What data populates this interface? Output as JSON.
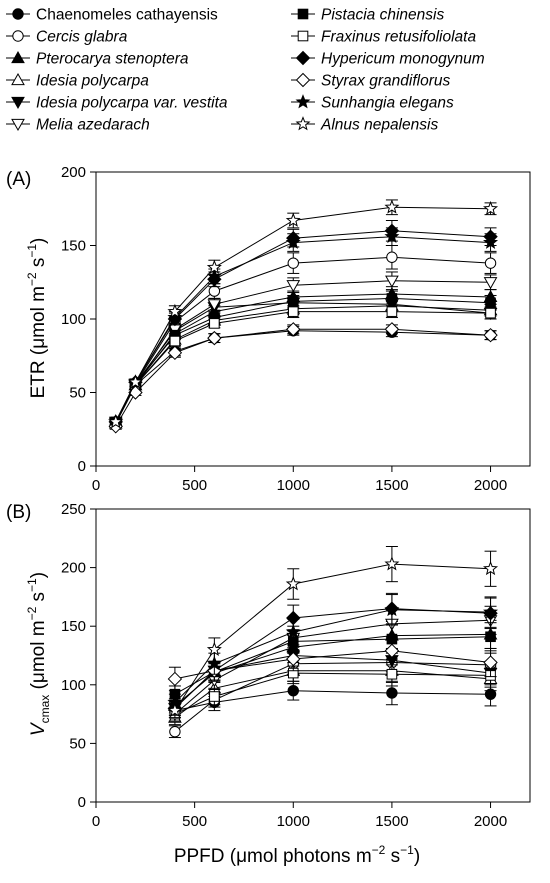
{
  "legend": [
    {
      "name": "Chaenomeles cathayensis",
      "italic": false,
      "marker": "circle",
      "filled": true
    },
    {
      "name": "Cercis glabra",
      "italic": true,
      "marker": "circle",
      "filled": false
    },
    {
      "name": "Pterocarya stenoptera",
      "italic": true,
      "marker": "triangle-up",
      "filled": true
    },
    {
      "name": "Idesia polycarpa",
      "italic": true,
      "marker": "triangle-up",
      "filled": false
    },
    {
      "name": "Idesia polycarpa var. vestita",
      "italic": true,
      "marker": "triangle-down",
      "filled": true
    },
    {
      "name": "Melia azedarach",
      "italic": true,
      "marker": "triangle-down",
      "filled": false
    },
    {
      "name": "Pistacia chinensis",
      "italic": true,
      "marker": "square",
      "filled": true
    },
    {
      "name": "Fraxinus retusifoliolata",
      "italic": true,
      "marker": "square",
      "filled": false
    },
    {
      "name": "Hypericum monogynum",
      "italic": true,
      "marker": "diamond",
      "filled": true
    },
    {
      "name": "Styrax grandiflorus",
      "italic": true,
      "marker": "diamond",
      "filled": false
    },
    {
      "name": "Sunhangia elegans",
      "italic": true,
      "marker": "star",
      "filled": true
    },
    {
      "name": "Alnus nepalensis",
      "italic": true,
      "marker": "star",
      "filled": false
    }
  ],
  "chart_data": [
    {
      "type": "line",
      "panel_label": "(A)",
      "ylabel_main": "ETR (μmol m",
      "ylabel_sup1": "−2",
      "ylabel_mid": " s",
      "ylabel_sup2": "−1",
      "ylabel_end": ")",
      "xlim": [
        0,
        2200
      ],
      "ylim": [
        0,
        200
      ],
      "xticks": [
        "0",
        "500",
        "1000",
        "1500",
        "2000"
      ],
      "yticks": [
        "0",
        "50",
        "100",
        "150",
        "200"
      ],
      "x": [
        100,
        200,
        400,
        600,
        1000,
        1500,
        2000
      ],
      "series": [
        {
          "name": "Chaenomeles cathayensis",
          "values": [
            30,
            55,
            78,
            87,
            92,
            91,
            89
          ],
          "err": [
            2,
            2,
            3,
            3,
            3,
            3,
            3
          ]
        },
        {
          "name": "Cercis glabra",
          "values": [
            29,
            56,
            98,
            119,
            138,
            142,
            138
          ],
          "err": [
            2,
            2,
            4,
            5,
            7,
            8,
            7
          ]
        },
        {
          "name": "Pterocarya stenoptera",
          "values": [
            30,
            55,
            90,
            105,
            115,
            117,
            115
          ],
          "err": [
            2,
            2,
            3,
            4,
            4,
            5,
            5
          ]
        },
        {
          "name": "Idesia polycarpa",
          "values": [
            29,
            55,
            86,
            99,
            107,
            109,
            106
          ],
          "err": [
            2,
            2,
            3,
            3,
            4,
            4,
            4
          ]
        },
        {
          "name": "Idesia polycarpa var. vestita",
          "values": [
            30,
            56,
            92,
            108,
            111,
            110,
            104
          ],
          "err": [
            2,
            2,
            3,
            4,
            4,
            4,
            4
          ]
        },
        {
          "name": "Melia azedarach",
          "values": [
            29,
            55,
            93,
            110,
            123,
            126,
            125
          ],
          "err": [
            2,
            2,
            3,
            4,
            5,
            6,
            5
          ]
        },
        {
          "name": "Pistacia chinensis",
          "values": [
            30,
            56,
            89,
            101,
            112,
            114,
            111
          ],
          "err": [
            2,
            2,
            3,
            4,
            4,
            5,
            5
          ]
        },
        {
          "name": "Fraxinus retusifoliolata",
          "values": [
            29,
            55,
            85,
            97,
            105,
            105,
            104
          ],
          "err": [
            2,
            2,
            3,
            3,
            4,
            4,
            4
          ]
        },
        {
          "name": "Hypericum monogynum",
          "values": [
            30,
            57,
            100,
            127,
            155,
            160,
            156
          ],
          "err": [
            2,
            2,
            4,
            5,
            6,
            7,
            6
          ]
        },
        {
          "name": "Styrax grandiflorus",
          "values": [
            27,
            50,
            77,
            87,
            93,
            93,
            89
          ],
          "err": [
            2,
            2,
            3,
            3,
            3,
            3,
            3
          ]
        },
        {
          "name": "Sunhangia elegans",
          "values": [
            30,
            57,
            101,
            129,
            152,
            156,
            152
          ],
          "err": [
            2,
            2,
            4,
            5,
            6,
            6,
            6
          ]
        },
        {
          "name": "Alnus nepalensis",
          "values": [
            30,
            57,
            105,
            135,
            167,
            176,
            175
          ],
          "err": [
            2,
            2,
            4,
            5,
            5,
            5,
            4
          ]
        }
      ]
    },
    {
      "type": "line",
      "panel_label": "(B)",
      "ylabel_main": "V",
      "ylabel_sub": "cmax",
      "ylabel_rest": " (μmol m",
      "ylabel_sup1": "−2",
      "ylabel_mid": " s",
      "ylabel_sup2": "−1",
      "ylabel_end": ")",
      "xlabel_main": "PPFD (μmol photons m",
      "xlabel_sup1": "−2",
      "xlabel_mid": " s",
      "xlabel_sup2": "−1",
      "xlabel_end": ")",
      "xlim": [
        0,
        2200
      ],
      "ylim": [
        0,
        250
      ],
      "xticks": [
        "0",
        "500",
        "1000",
        "1500",
        "2000"
      ],
      "yticks": [
        "0",
        "50",
        "100",
        "150",
        "200",
        "250"
      ],
      "x": [
        400,
        600,
        1000,
        1500,
        2000
      ],
      "series": [
        {
          "name": "Chaenomeles cathayensis",
          "values": [
            78,
            85,
            95,
            93,
            92
          ],
          "err": [
            6,
            7,
            8,
            10,
            10
          ]
        },
        {
          "name": "Cercis glabra",
          "values": [
            60,
            87,
            118,
            119,
            117
          ],
          "err": [
            5,
            6,
            9,
            10,
            10
          ]
        },
        {
          "name": "Pterocarya stenoptera",
          "values": [
            82,
            110,
            132,
            142,
            143
          ],
          "err": [
            6,
            8,
            10,
            12,
            12
          ]
        },
        {
          "name": "Idesia polycarpa",
          "values": [
            72,
            97,
            112,
            112,
            105
          ],
          "err": [
            6,
            7,
            9,
            10,
            10
          ]
        },
        {
          "name": "Idesia polycarpa var. vestita",
          "values": [
            80,
            112,
            125,
            121,
            110
          ],
          "err": [
            6,
            8,
            9,
            10,
            10
          ]
        },
        {
          "name": "Melia azedarach",
          "values": [
            75,
            104,
            140,
            152,
            155
          ],
          "err": [
            6,
            8,
            10,
            12,
            12
          ]
        },
        {
          "name": "Pistacia chinensis",
          "values": [
            92,
            111,
            137,
            139,
            141
          ],
          "err": [
            7,
            8,
            10,
            12,
            12
          ]
        },
        {
          "name": "Fraxinus retusifoliolata",
          "values": [
            75,
            90,
            110,
            109,
            108
          ],
          "err": [
            6,
            7,
            9,
            10,
            10
          ]
        },
        {
          "name": "Hypericum monogynum",
          "values": [
            80,
            112,
            157,
            165,
            161
          ],
          "err": [
            6,
            8,
            11,
            13,
            13
          ]
        },
        {
          "name": "Styrax grandiflorus",
          "values": [
            105,
            112,
            122,
            129,
            119
          ],
          "err": [
            10,
            8,
            10,
            12,
            12
          ]
        },
        {
          "name": "Sunhangia elegans",
          "values": [
            85,
            118,
            145,
            164,
            162
          ],
          "err": [
            7,
            9,
            11,
            13,
            13
          ]
        },
        {
          "name": "Alnus nepalensis",
          "values": [
            78,
            130,
            186,
            203,
            199
          ],
          "err": [
            6,
            10,
            13,
            15,
            15
          ]
        }
      ]
    }
  ]
}
